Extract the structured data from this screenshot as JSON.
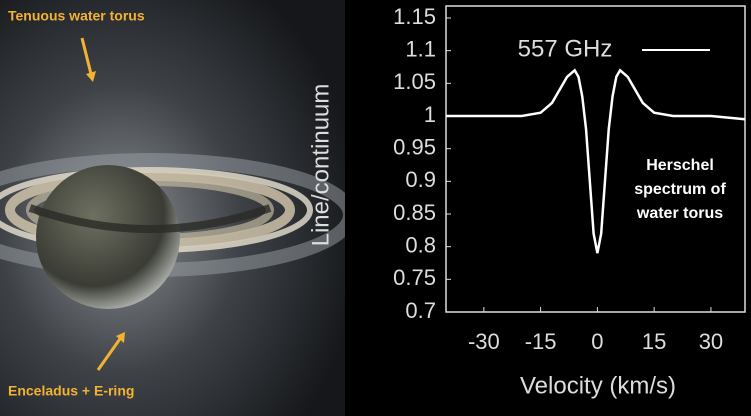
{
  "image_labels": {
    "top": "Tenuous water torus",
    "bottom": "Enceladus + E-ring"
  },
  "chart_data": {
    "type": "line",
    "x_label": "Velocity (km/s)",
    "y_label": "Line/continuum",
    "annotation": [
      "Herschel",
      "spectrum of",
      "water torus"
    ],
    "x": [
      -40,
      -30,
      -20,
      -15,
      -12,
      -10,
      -8,
      -7,
      -6,
      -5,
      -4,
      -3,
      -2,
      -1,
      0,
      1,
      2,
      3,
      4,
      5,
      6,
      7,
      8,
      10,
      12,
      15,
      20,
      30,
      39
    ],
    "series": [
      {
        "name": "557 GHz",
        "color": "#ffffff",
        "values": [
          1.0,
          1.0,
          1.0,
          1.005,
          1.02,
          1.04,
          1.06,
          1.065,
          1.07,
          1.06,
          1.03,
          0.98,
          0.9,
          0.82,
          0.79,
          0.82,
          0.9,
          0.98,
          1.03,
          1.06,
          1.07,
          1.065,
          1.06,
          1.04,
          1.02,
          1.005,
          1.0,
          1.0,
          0.995
        ]
      }
    ],
    "xlim": [
      -40,
      39
    ],
    "ylim": [
      0.7,
      1.15
    ],
    "xticks": [
      -30,
      -15,
      0,
      15,
      30
    ],
    "yticks": [
      0.7,
      0.75,
      0.8,
      0.85,
      0.9,
      0.95,
      1,
      1.05,
      1.1,
      1.15
    ],
    "legend": "top-right"
  }
}
